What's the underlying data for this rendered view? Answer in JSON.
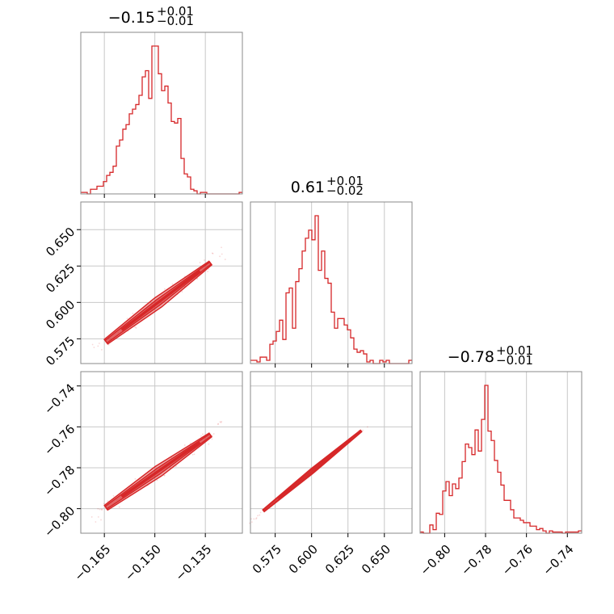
{
  "chart_data": {
    "type": "corner",
    "color": "#d62728",
    "parameters": [
      {
        "title": {
          "value": "−0.15",
          "plus": "+0.01",
          "minus": "−0.01"
        },
        "range": [
          -0.172,
          -0.124
        ],
        "ticks": [
          -0.165,
          -0.15,
          -0.135
        ],
        "tick_labels": [
          "−0.165",
          "−0.150",
          "−0.135"
        ],
        "hist": [
          1,
          1,
          0,
          3,
          3,
          5,
          5,
          8,
          12,
          14,
          18,
          31,
          35,
          42,
          45,
          52,
          55,
          58,
          64,
          76,
          80,
          62,
          96,
          96,
          78,
          67,
          70,
          59,
          47,
          46,
          49,
          23,
          13,
          11,
          3,
          2,
          0,
          1,
          1,
          0,
          0,
          0,
          0,
          0,
          0,
          0,
          0,
          0,
          0,
          1
        ]
      },
      {
        "title": {
          "value": "0.61",
          "plus": "+0.01",
          "minus": "−0.02"
        },
        "range": [
          0.558,
          0.669
        ],
        "ticks": [
          0.575,
          0.6,
          0.625,
          0.65
        ],
        "tick_labels": [
          "0.575",
          "0.600",
          "0.625",
          "0.650"
        ],
        "hist": [
          2,
          2,
          1,
          4,
          4,
          2,
          12,
          14,
          20,
          27,
          15,
          44,
          47,
          22,
          51,
          59,
          70,
          78,
          83,
          77,
          92,
          58,
          70,
          53,
          50,
          32,
          22,
          28,
          28,
          24,
          21,
          16,
          9,
          7,
          8,
          6,
          1,
          2,
          0,
          0,
          2,
          1,
          2,
          0,
          0,
          0,
          0,
          0,
          0,
          2
        ]
      },
      {
        "title": {
          "value": "−0.78",
          "plus": "+0.01",
          "minus": "−0.01"
        },
        "range": [
          -0.812,
          -0.733
        ],
        "ticks": [
          -0.8,
          -0.78,
          -0.76,
          -0.74
        ],
        "tick_labels": [
          "−0.80",
          "−0.78",
          "−0.76",
          "−0.74"
        ],
        "hist": [
          1,
          0,
          0,
          7,
          3,
          17,
          16,
          36,
          44,
          32,
          42,
          38,
          47,
          61,
          76,
          73,
          67,
          88,
          70,
          97,
          126,
          87,
          79,
          62,
          52,
          41,
          28,
          28,
          20,
          13,
          13,
          11,
          9,
          9,
          6,
          6,
          3,
          4,
          2,
          0,
          2,
          1,
          1,
          1,
          0,
          1,
          1,
          1,
          1,
          2
        ]
      }
    ],
    "pairs": [
      {
        "row": 1,
        "col": 0,
        "x0": -0.1645,
        "y0": 0.573,
        "x1": -0.1335,
        "y1": 0.627
      },
      {
        "row": 2,
        "col": 0,
        "x0": -0.1645,
        "y0": -0.7995,
        "x1": -0.1335,
        "y1": -0.764
      },
      {
        "row": 2,
        "col": 1,
        "x0": 0.567,
        "y0": -0.801,
        "x1": 0.634,
        "y1": -0.762
      }
    ]
  }
}
